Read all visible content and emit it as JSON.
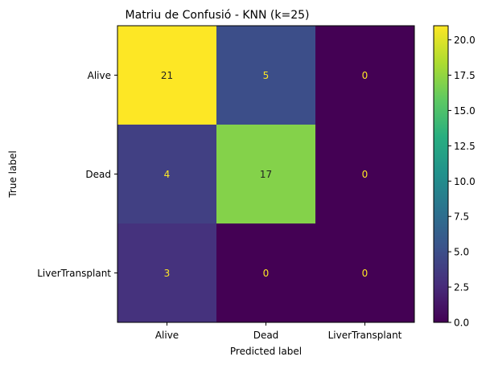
{
  "chart_data": {
    "type": "heatmap",
    "title": "Matriu de Confusió - KNN (k=25)",
    "xlabel": "Predicted label",
    "ylabel": "True label",
    "x_categories": [
      "Alive",
      "Dead",
      "LiverTransplant"
    ],
    "y_categories": [
      "Alive",
      "Dead",
      "LiverTransplant"
    ],
    "matrix": [
      [
        21,
        5,
        0
      ],
      [
        4,
        17,
        0
      ],
      [
        3,
        0,
        0
      ]
    ],
    "colormap": "viridis",
    "colorbar": {
      "range": [
        0,
        21
      ],
      "ticks": [
        0.0,
        2.5,
        5.0,
        7.5,
        10.0,
        12.5,
        15.0,
        17.5,
        20.0
      ],
      "tick_labels": [
        "0.0",
        "2.5",
        "5.0",
        "7.5",
        "10.0",
        "12.5",
        "15.0",
        "17.5",
        "20.0"
      ]
    },
    "text_colors": {
      "dark_cell": "#fde725",
      "light_cell": "#222222"
    },
    "grid": false
  }
}
